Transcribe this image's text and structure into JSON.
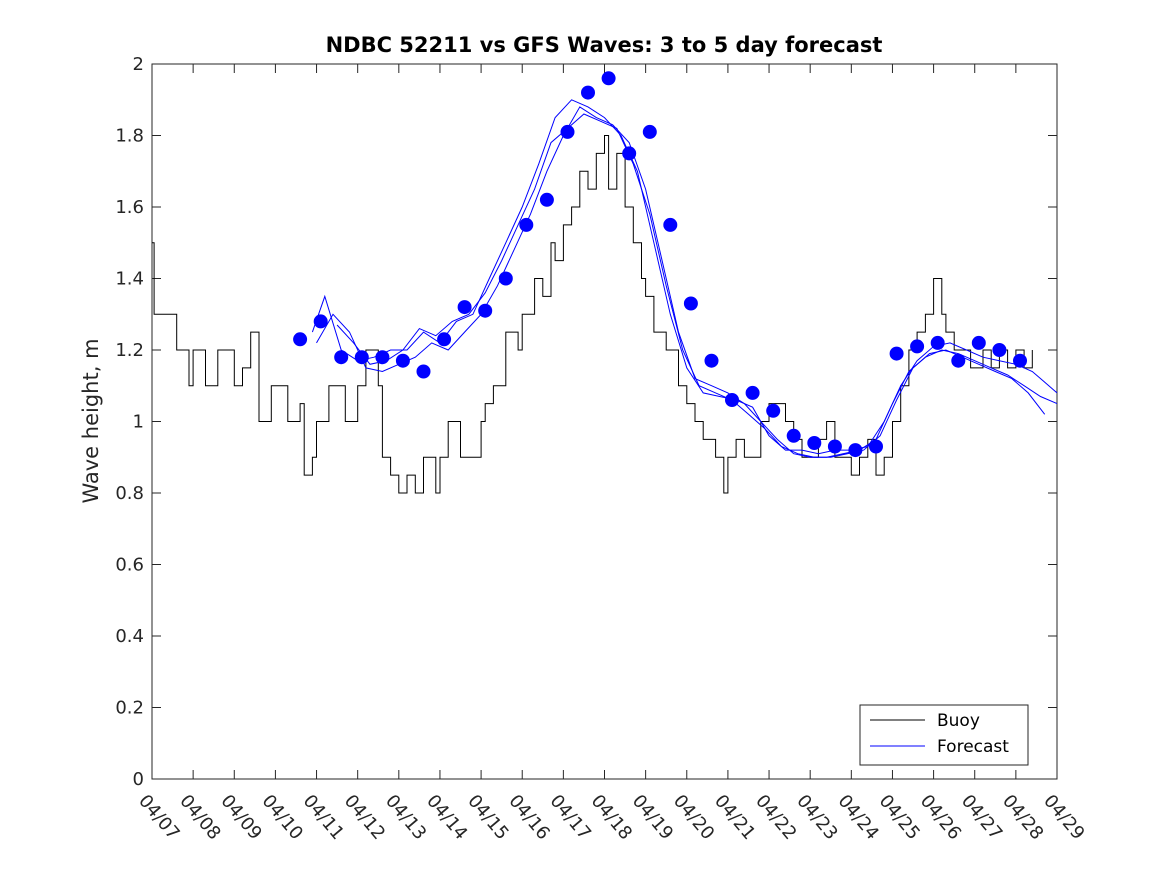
{
  "chart_data": {
    "type": "line",
    "title": "NDBC 52211 vs GFS Waves: 3 to 5 day forecast",
    "xlabel": "",
    "ylabel": "Wave height, m",
    "ylim": [
      0,
      2
    ],
    "yticks": [
      "0",
      "0.2",
      "0.4",
      "0.6",
      "0.8",
      "1",
      "1.2",
      "1.4",
      "1.6",
      "1.8",
      "2"
    ],
    "xticks": [
      "04/07",
      "04/08",
      "04/09",
      "04/10",
      "04/11",
      "04/12",
      "04/13",
      "04/14",
      "04/15",
      "04/16",
      "04/17",
      "04/18",
      "04/19",
      "04/20",
      "04/21",
      "04/22",
      "04/23",
      "04/24",
      "04/25",
      "04/26",
      "04/27",
      "04/28",
      "04/29"
    ],
    "x_unit": "days since 04/07",
    "xlim": [
      0,
      22
    ],
    "grid": false,
    "legend_position": "bottom-right",
    "legend": [
      {
        "label": "Buoy",
        "color": "#000000"
      },
      {
        "label": "Forecast",
        "color": "#0000ff"
      }
    ],
    "colors": {
      "buoy": "#000000",
      "forecast": "#0000ff",
      "markers": "#0000ff"
    },
    "series": [
      {
        "name": "Buoy",
        "color": "#000000",
        "x": [
          0.0,
          0.05,
          0.1,
          0.6,
          0.6,
          0.9,
          1.0,
          1.3,
          1.6,
          2.0,
          2.2,
          2.4,
          2.6,
          2.9,
          3.3,
          3.6,
          3.7,
          3.9,
          4.0,
          4.3,
          4.7,
          5.0,
          5.2,
          5.5,
          5.6,
          5.8,
          6.0,
          6.2,
          6.4,
          6.6,
          6.9,
          7.0,
          7.2,
          7.5,
          7.8,
          8.0,
          8.1,
          8.3,
          8.6,
          8.9,
          9.0,
          9.3,
          9.5,
          9.7,
          9.8,
          10.0,
          10.2,
          10.4,
          10.6,
          10.8,
          11.0,
          11.1,
          11.3,
          11.5,
          11.7,
          11.9,
          12.0,
          12.2,
          12.5,
          12.8,
          13.0,
          13.2,
          13.4,
          13.7,
          13.9,
          14.0,
          14.2,
          14.4,
          14.6,
          14.8,
          15.0,
          15.2,
          15.4,
          15.6,
          15.8,
          16.0,
          16.2,
          16.4,
          16.6,
          16.8,
          17.0,
          17.2,
          17.4,
          17.6,
          17.8,
          18.0,
          18.2,
          18.4,
          18.6,
          18.8,
          19.0,
          19.2,
          19.3,
          19.5,
          19.7,
          19.9,
          20.0,
          20.2,
          20.4,
          20.6,
          20.8,
          21.0,
          21.2,
          21.4
        ],
        "values": [
          1.5,
          1.3,
          1.3,
          1.3,
          1.2,
          1.1,
          1.2,
          1.1,
          1.2,
          1.1,
          1.15,
          1.25,
          1.0,
          1.1,
          1.0,
          1.05,
          0.85,
          0.9,
          1.0,
          1.1,
          1.0,
          1.1,
          1.2,
          1.1,
          0.9,
          0.85,
          0.8,
          0.85,
          0.8,
          0.9,
          0.8,
          0.9,
          1.0,
          0.9,
          0.9,
          1.0,
          1.05,
          1.1,
          1.25,
          1.2,
          1.3,
          1.4,
          1.35,
          1.5,
          1.45,
          1.55,
          1.6,
          1.7,
          1.65,
          1.75,
          1.8,
          1.65,
          1.75,
          1.6,
          1.5,
          1.4,
          1.35,
          1.25,
          1.2,
          1.1,
          1.05,
          1.0,
          0.95,
          0.9,
          0.8,
          0.9,
          0.95,
          0.9,
          0.9,
          1.0,
          1.05,
          1.05,
          1.0,
          0.95,
          0.9,
          0.9,
          0.95,
          1.0,
          0.9,
          0.9,
          0.85,
          0.9,
          0.95,
          0.85,
          0.9,
          1.0,
          1.1,
          1.2,
          1.25,
          1.3,
          1.4,
          1.3,
          1.25,
          1.2,
          1.2,
          1.15,
          1.15,
          1.2,
          1.15,
          1.2,
          1.15,
          1.2,
          1.15,
          1.2
        ]
      },
      {
        "name": "Forecast",
        "color": "#0000ff",
        "x": [
          3.9,
          4.2,
          4.6,
          5.0,
          5.4,
          5.8,
          6.2,
          6.6,
          7.0,
          7.4,
          7.8,
          8.2,
          8.6,
          9.0,
          9.4,
          9.8,
          10.2,
          10.6,
          11.0,
          11.4,
          11.8,
          12.2,
          12.6,
          13.0,
          13.4,
          13.8,
          14.2,
          14.6,
          15.0,
          15.4,
          15.8,
          16.2,
          16.6,
          17.0,
          17.4,
          17.8,
          18.2,
          18.6,
          19.0,
          19.4,
          19.8,
          20.2,
          20.6,
          21.0,
          21.4,
          21.8,
          22.0
        ],
        "values": [
          1.25,
          1.35,
          1.2,
          1.17,
          1.18,
          1.2,
          1.2,
          1.25,
          1.22,
          1.28,
          1.3,
          1.4,
          1.5,
          1.6,
          1.72,
          1.85,
          1.9,
          1.88,
          1.85,
          1.8,
          1.7,
          1.5,
          1.3,
          1.15,
          1.08,
          1.07,
          1.06,
          1.04,
          0.96,
          0.92,
          0.92,
          0.91,
          0.92,
          0.92,
          0.93,
          1.0,
          1.1,
          1.17,
          1.21,
          1.22,
          1.2,
          1.18,
          1.17,
          1.16,
          1.14,
          1.1,
          1.08
        ]
      },
      {
        "name": "Forecast",
        "color": "#0000ff",
        "x": [
          4.0,
          4.4,
          4.8,
          5.2,
          5.6,
          6.0,
          6.4,
          6.8,
          7.2,
          7.6,
          8.0,
          8.4,
          8.8,
          9.2,
          9.6,
          10.0,
          10.4,
          10.8,
          11.2,
          11.6,
          12.0,
          12.4,
          12.8,
          13.2,
          13.6,
          14.0,
          14.4,
          14.8,
          15.2,
          15.6,
          16.0,
          16.4,
          16.8,
          17.2,
          17.6,
          18.0,
          18.4,
          18.8,
          19.2,
          19.6,
          20.0,
          20.4,
          20.8,
          21.2,
          21.6,
          22.0
        ],
        "values": [
          1.22,
          1.3,
          1.25,
          1.15,
          1.14,
          1.16,
          1.18,
          1.22,
          1.2,
          1.25,
          1.3,
          1.38,
          1.48,
          1.58,
          1.7,
          1.8,
          1.88,
          1.85,
          1.83,
          1.78,
          1.65,
          1.45,
          1.25,
          1.12,
          1.1,
          1.08,
          1.05,
          1.0,
          0.95,
          0.91,
          0.9,
          0.9,
          0.91,
          0.92,
          0.95,
          1.05,
          1.14,
          1.18,
          1.2,
          1.19,
          1.17,
          1.15,
          1.13,
          1.1,
          1.07,
          1.05
        ]
      },
      {
        "name": "Forecast",
        "color": "#0000ff",
        "x": [
          4.5,
          4.9,
          5.3,
          5.7,
          6.1,
          6.5,
          6.9,
          7.3,
          7.7,
          8.1,
          8.5,
          8.9,
          9.3,
          9.7,
          10.1,
          10.5,
          10.9,
          11.3,
          11.7,
          12.1,
          12.5,
          12.9,
          13.3,
          13.7,
          14.1,
          14.5,
          14.9,
          15.3,
          15.7,
          16.1,
          16.5,
          16.9,
          17.3,
          17.7,
          18.1,
          18.5,
          18.9,
          19.3,
          19.7,
          20.1,
          20.5,
          20.9,
          21.3,
          21.7
        ],
        "values": [
          1.27,
          1.22,
          1.16,
          1.17,
          1.2,
          1.26,
          1.24,
          1.28,
          1.3,
          1.36,
          1.45,
          1.55,
          1.65,
          1.78,
          1.82,
          1.86,
          1.84,
          1.82,
          1.72,
          1.58,
          1.38,
          1.2,
          1.1,
          1.08,
          1.06,
          1.02,
          0.98,
          0.93,
          0.91,
          0.9,
          0.9,
          0.91,
          0.92,
          0.96,
          1.06,
          1.15,
          1.19,
          1.2,
          1.18,
          1.16,
          1.14,
          1.12,
          1.08,
          1.02
        ]
      }
    ],
    "markers": {
      "name": "Forecast",
      "color": "#0000ff",
      "x": [
        3.6,
        4.1,
        4.6,
        5.1,
        5.6,
        6.1,
        6.6,
        7.1,
        7.6,
        8.1,
        8.6,
        9.1,
        9.6,
        10.1,
        10.6,
        11.1,
        11.6,
        12.1,
        12.6,
        13.1,
        13.6,
        14.1,
        14.6,
        15.1,
        15.6,
        16.1,
        16.6,
        17.1,
        17.6,
        18.1,
        18.6,
        19.1,
        19.6,
        20.1,
        20.6,
        21.1
      ],
      "values": [
        1.23,
        1.28,
        1.18,
        1.18,
        1.18,
        1.17,
        1.14,
        1.23,
        1.32,
        1.31,
        1.4,
        1.55,
        1.62,
        1.81,
        1.92,
        1.96,
        1.75,
        1.81,
        1.55,
        1.33,
        1.17,
        1.06,
        1.08,
        1.03,
        0.96,
        0.94,
        0.93,
        0.92,
        0.93,
        1.19,
        1.21,
        1.22,
        1.17,
        1.22,
        1.2,
        1.17
      ]
    }
  }
}
